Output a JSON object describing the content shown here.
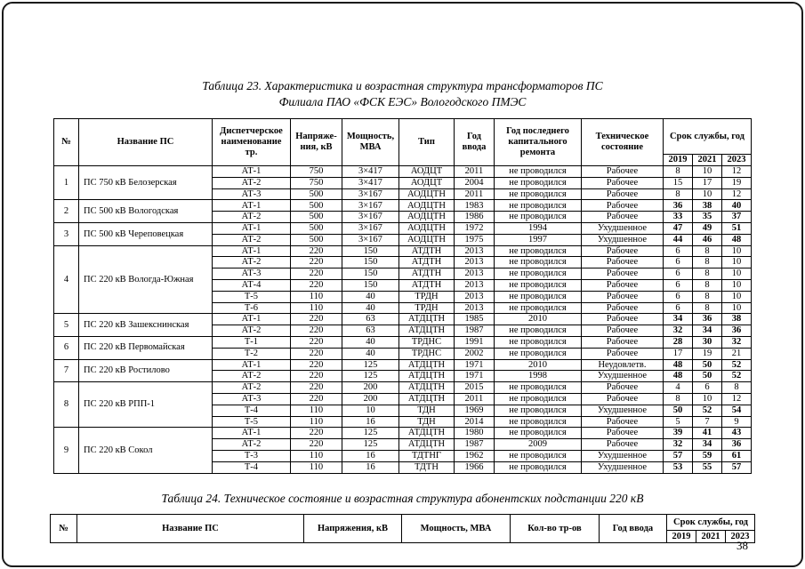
{
  "page": {
    "number": "38"
  },
  "table23": {
    "caption_line1": "Таблица 23. Характеристика и возрастная структура трансформаторов ПС",
    "caption_line2": "Филиала ПАО «ФСК ЕЭС» Вологодского ПМЭС",
    "headers": {
      "num": "№",
      "name": "Название ПС",
      "dispatcher": "Диспетчерское наименование тр.",
      "voltage": "Напряже-ния, кВ",
      "power": "Мощность, МВА",
      "type": "Тип",
      "year": "Год ввода",
      "repair": "Год последнего капитального ремонта",
      "condition": "Техническое состояние",
      "service": "Срок службы, год",
      "years": [
        "2019",
        "2021",
        "2023"
      ]
    },
    "groups": [
      {
        "num": "1",
        "name": "ПС 750 кВ Белозерская",
        "rows": [
          {
            "tr": "АТ-1",
            "kv": "750",
            "mva": "3×417",
            "type": "АОДЦТ",
            "year": "2011",
            "repair": "не проводился",
            "condition": "Рабочее",
            "life": [
              "8",
              "10",
              "12"
            ],
            "life_bold": false
          },
          {
            "tr": "АТ-2",
            "kv": "750",
            "mva": "3×417",
            "type": "АОДЦТ",
            "year": "2004",
            "repair": "не проводился",
            "condition": "Рабочее",
            "life": [
              "15",
              "17",
              "19"
            ],
            "life_bold": false
          },
          {
            "tr": "АТ-3",
            "kv": "500",
            "mva": "3×167",
            "type": "АОДЦТН",
            "year": "2011",
            "repair": "не проводился",
            "condition": "Рабочее",
            "life": [
              "8",
              "10",
              "12"
            ],
            "life_bold": false
          }
        ]
      },
      {
        "num": "2",
        "name": "ПС 500 кВ Вологодская",
        "rows": [
          {
            "tr": "АТ-1",
            "kv": "500",
            "mva": "3×167",
            "type": "АОДЦТН",
            "year": "1983",
            "repair": "не проводился",
            "condition": "Рабочее",
            "life": [
              "36",
              "38",
              "40"
            ],
            "life_bold": true
          },
          {
            "tr": "АТ-2",
            "kv": "500",
            "mva": "3×167",
            "type": "АОДЦТН",
            "year": "1986",
            "repair": "не проводился",
            "condition": "Рабочее",
            "life": [
              "33",
              "35",
              "37"
            ],
            "life_bold": true
          }
        ]
      },
      {
        "num": "3",
        "name": "ПС 500 кВ Череповецкая",
        "rows": [
          {
            "tr": "АТ-1",
            "kv": "500",
            "mva": "3×167",
            "type": "АОДЦТН",
            "year": "1972",
            "repair": "1994",
            "condition": "Ухудшенное",
            "life": [
              "47",
              "49",
              "51"
            ],
            "life_bold": true
          },
          {
            "tr": "АТ-2",
            "kv": "500",
            "mva": "3×167",
            "type": "АОДЦТН",
            "year": "1975",
            "repair": "1997",
            "condition": "Ухудшенное",
            "life": [
              "44",
              "46",
              "48"
            ],
            "life_bold": true
          }
        ]
      },
      {
        "num": "4",
        "name": "ПС 220 кВ Вологда-Южная",
        "rows": [
          {
            "tr": "АТ-1",
            "kv": "220",
            "mva": "150",
            "type": "АТДТН",
            "year": "2013",
            "repair": "не проводился",
            "condition": "Рабочее",
            "life": [
              "6",
              "8",
              "10"
            ],
            "life_bold": false
          },
          {
            "tr": "АТ-2",
            "kv": "220",
            "mva": "150",
            "type": "АТДТН",
            "year": "2013",
            "repair": "не проводился",
            "condition": "Рабочее",
            "life": [
              "6",
              "8",
              "10"
            ],
            "life_bold": false
          },
          {
            "tr": "АТ-3",
            "kv": "220",
            "mva": "150",
            "type": "АТДТН",
            "year": "2013",
            "repair": "не проводился",
            "condition": "Рабочее",
            "life": [
              "6",
              "8",
              "10"
            ],
            "life_bold": false
          },
          {
            "tr": "АТ-4",
            "kv": "220",
            "mva": "150",
            "type": "АТДТН",
            "year": "2013",
            "repair": "не проводился",
            "condition": "Рабочее",
            "life": [
              "6",
              "8",
              "10"
            ],
            "life_bold": false
          },
          {
            "tr": "Т-5",
            "kv": "110",
            "mva": "40",
            "type": "ТРДН",
            "year": "2013",
            "repair": "не проводился",
            "condition": "Рабочее",
            "life": [
              "6",
              "8",
              "10"
            ],
            "life_bold": false
          },
          {
            "tr": "Т-6",
            "kv": "110",
            "mva": "40",
            "type": "ТРДН",
            "year": "2013",
            "repair": "не проводился",
            "condition": "Рабочее",
            "life": [
              "6",
              "8",
              "10"
            ],
            "life_bold": false
          }
        ]
      },
      {
        "num": "5",
        "name": "ПС 220 кВ Зашекснинская",
        "rows": [
          {
            "tr": "АТ-1",
            "kv": "220",
            "mva": "63",
            "type": "АТДЦТН",
            "year": "1985",
            "repair": "2010",
            "condition": "Рабочее",
            "life": [
              "34",
              "36",
              "38"
            ],
            "life_bold": true
          },
          {
            "tr": "АТ-2",
            "kv": "220",
            "mva": "63",
            "type": "АТДЦТН",
            "year": "1987",
            "repair": "не проводился",
            "condition": "Рабочее",
            "life": [
              "32",
              "34",
              "36"
            ],
            "life_bold": true
          }
        ]
      },
      {
        "num": "6",
        "name": "ПС 220 кВ Первомайская",
        "rows": [
          {
            "tr": "Т-1",
            "kv": "220",
            "mva": "40",
            "type": "ТРДНС",
            "year": "1991",
            "repair": "не проводился",
            "condition": "Рабочее",
            "life": [
              "28",
              "30",
              "32"
            ],
            "life_bold": true
          },
          {
            "tr": "Т-2",
            "kv": "220",
            "mva": "40",
            "type": "ТРДНС",
            "year": "2002",
            "repair": "не проводился",
            "condition": "Рабочее",
            "life": [
              "17",
              "19",
              "21"
            ],
            "life_bold": false
          }
        ]
      },
      {
        "num": "7",
        "name": "ПС 220 кВ Ростилово",
        "rows": [
          {
            "tr": "АТ-1",
            "kv": "220",
            "mva": "125",
            "type": "АТДЦТН",
            "year": "1971",
            "repair": "2010",
            "condition": "Неудовлетв.",
            "life": [
              "48",
              "50",
              "52"
            ],
            "life_bold": true
          },
          {
            "tr": "АТ-2",
            "kv": "220",
            "mva": "125",
            "type": "АТДЦТН",
            "year": "1971",
            "repair": "1998",
            "condition": "Ухудшенное",
            "life": [
              "48",
              "50",
              "52"
            ],
            "life_bold": true
          }
        ]
      },
      {
        "num": "8",
        "name": "ПС 220 кВ РПП-1",
        "rows": [
          {
            "tr": "АТ-2",
            "kv": "220",
            "mva": "200",
            "type": "АТДЦТН",
            "year": "2015",
            "repair": "не проводился",
            "condition": "Рабочее",
            "life": [
              "4",
              "6",
              "8"
            ],
            "life_bold": false
          },
          {
            "tr": "АТ-3",
            "kv": "220",
            "mva": "200",
            "type": "АТДЦТН",
            "year": "2011",
            "repair": "не проводился",
            "condition": "Рабочее",
            "life": [
              "8",
              "10",
              "12"
            ],
            "life_bold": false
          },
          {
            "tr": "Т-4",
            "kv": "110",
            "mva": "10",
            "type": "ТДН",
            "year": "1969",
            "repair": "не проводился",
            "condition": "Ухудшенное",
            "life": [
              "50",
              "52",
              "54"
            ],
            "life_bold": true
          },
          {
            "tr": "Т-5",
            "kv": "110",
            "mva": "16",
            "type": "ТДН",
            "year": "2014",
            "repair": "не проводился",
            "condition": "Рабочее",
            "life": [
              "5",
              "7",
              "9"
            ],
            "life_bold": false
          }
        ]
      },
      {
        "num": "9",
        "name": "ПС 220 кВ Сокол",
        "rows": [
          {
            "tr": "АТ-1",
            "kv": "220",
            "mva": "125",
            "type": "АТДЦТН",
            "year": "1980",
            "repair": "не проводился",
            "condition": "Рабочее",
            "life": [
              "39",
              "41",
              "43"
            ],
            "life_bold": true
          },
          {
            "tr": "АТ-2",
            "kv": "220",
            "mva": "125",
            "type": "АТДЦТН",
            "year": "1987",
            "repair": "2009",
            "condition": "Рабочее",
            "life": [
              "32",
              "34",
              "36"
            ],
            "life_bold": true
          },
          {
            "tr": "Т-3",
            "kv": "110",
            "mva": "16",
            "type": "ТДТНГ",
            "year": "1962",
            "repair": "не проводился",
            "condition": "Ухудшенное",
            "life": [
              "57",
              "59",
              "61"
            ],
            "life_bold": true
          },
          {
            "tr": "Т-4",
            "kv": "110",
            "mva": "16",
            "type": "ТДТН",
            "year": "1966",
            "repair": "не проводился",
            "condition": "Ухудшенное",
            "life": [
              "53",
              "55",
              "57"
            ],
            "life_bold": true
          }
        ]
      }
    ]
  },
  "table24": {
    "caption": "Таблица 24. Техническое состояние и возрастная структура абонентских подстанции 220 кВ",
    "headers": {
      "num": "№",
      "name": "Название ПС",
      "voltage": "Напряжения, кВ",
      "power": "Мощность, МВА",
      "count": "Кол-во тр-ов",
      "year": "Год ввода",
      "service": "Срок службы, год",
      "years": [
        "2019",
        "2021",
        "2023"
      ]
    }
  }
}
